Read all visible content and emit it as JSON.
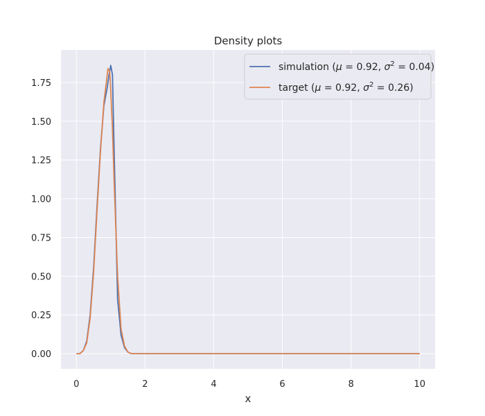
{
  "chart_data": {
    "type": "line",
    "title": "Density plots",
    "xlabel": "x",
    "ylabel": "",
    "xlim": [
      -0.45,
      10.45
    ],
    "ylim": [
      -0.098,
      1.96
    ],
    "xticks": [
      0,
      2,
      4,
      6,
      8,
      10
    ],
    "yticks": [
      0.0,
      0.25,
      0.5,
      0.75,
      1.0,
      1.25,
      1.5,
      1.75
    ],
    "xtick_labels": [
      "0",
      "2",
      "4",
      "6",
      "8",
      "10"
    ],
    "ytick_labels": [
      "0.00",
      "0.25",
      "0.50",
      "0.75",
      "1.00",
      "1.25",
      "1.50",
      "1.75"
    ],
    "grid": true,
    "background": "#eaeaf2",
    "legend_position": "top-right",
    "series": [
      {
        "name": "simulation (μ = 0.92, σ² = 0.04)",
        "label_prefix": "simulation (",
        "label_mu": "μ",
        "label_mid": " = 0.92, ",
        "label_sigma": "σ",
        "label_sup": "2",
        "label_suffix": " = 0.04)",
        "color": "#4c72b0",
        "x": [
          0,
          0.1,
          0.2,
          0.3,
          0.4,
          0.5,
          0.6,
          0.7,
          0.8,
          0.9,
          0.95,
          1.0,
          1.05,
          1.1,
          1.2,
          1.3,
          1.4,
          1.5,
          1.6,
          1.8,
          2.0,
          3.0,
          4.0,
          5.0,
          6.0,
          7.0,
          8.0,
          9.0,
          10.0
        ],
        "y": [
          0.0,
          0.0,
          0.02,
          0.08,
          0.25,
          0.55,
          0.95,
          1.32,
          1.6,
          1.72,
          1.8,
          1.86,
          1.8,
          1.3,
          0.35,
          0.12,
          0.04,
          0.01,
          0.0,
          0.0,
          0.0,
          0.0,
          0.0,
          0.0,
          0.0,
          0.0,
          0.0,
          0.0,
          0.0
        ]
      },
      {
        "name": "target (μ = 0.92, σ² = 0.26)",
        "label_prefix": "target (",
        "label_mu": "μ",
        "label_mid": " = 0.92, ",
        "label_sigma": "σ",
        "label_sup": "2",
        "label_suffix": " = 0.26)",
        "color": "#dd8452",
        "x": [
          0,
          0.1,
          0.2,
          0.3,
          0.4,
          0.5,
          0.6,
          0.7,
          0.8,
          0.92,
          0.97,
          1.0,
          1.05,
          1.1,
          1.2,
          1.3,
          1.4,
          1.5,
          1.6,
          1.8,
          2.0,
          3.0,
          4.0,
          5.0,
          6.0,
          7.0,
          8.0,
          9.0,
          10.0
        ],
        "y": [
          0.0,
          0.0,
          0.02,
          0.07,
          0.23,
          0.52,
          0.92,
          1.3,
          1.62,
          1.84,
          1.82,
          1.7,
          1.45,
          1.1,
          0.5,
          0.16,
          0.05,
          0.01,
          0.0,
          0.0,
          0.0,
          0.0,
          0.0,
          0.0,
          0.0,
          0.0,
          0.0,
          0.0,
          0.0
        ]
      }
    ]
  }
}
